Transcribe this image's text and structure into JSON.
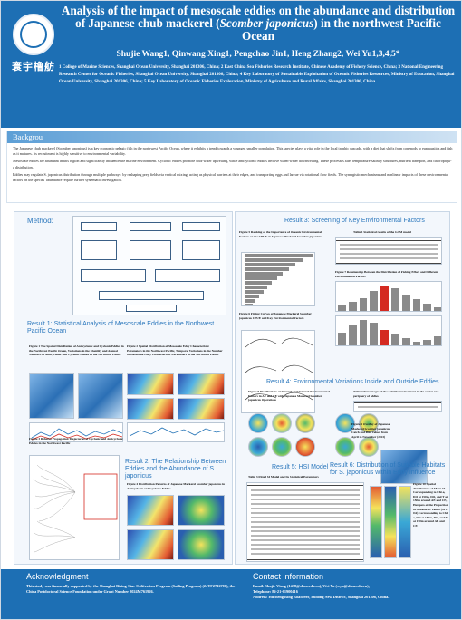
{
  "header": {
    "title_line1": "Analysis of the impact of mesoscale eddies on the abundance and distribution",
    "title_line2_pre": "of Japanese chub mackerel (",
    "title_line2_italic": "Scomber japonicus",
    "title_line2_post": ") in the northwest Pacific Ocean",
    "authors": "Shujie Wang1, Qinwang Xing1, Pengchao Jin1, Heng Zhang2, Wei Yu1,3,4,5*",
    "affiliations": "1 College of Marine Sciences, Shanghai Ocean University, Shanghai 201306, China; 2 East China Sea Fisheries Research Institute, Chinese Academy of Fishery Science, China; 3 National Engineering Research Center for Oceanic Fisheries, Shanghai Ocean University, Shanghai 201306, China; 4 Key Laboratory of Sustainable Exploitation of Oceanic Fisheries Resources, Ministry of Education, Shanghai Ocean University, Shanghai 201306, China; 5 Key Laboratory of Oceanic Fisheries Exploration, Ministry of Agriculture and Rural Affairs, Shanghai 201306, China",
    "logo_motto": "寰宇橹舫"
  },
  "background": {
    "heading": "Backgrou",
    "p1": "The Japanese chub mackerel (Scomber japonicus) is a key economic pelagic fish in the northwest Pacific Ocean, where it exhibits a trend towards a younger, smaller population. This species plays a vital role in the local trophic cascade, with a diet that shifts from copepods to euphausiids and fish as it matures. Its recruitment is highly sensitive to environmental variability.",
    "p2": "Mesoscale eddies are abundant in this region and significantly influence the marine environment. Cyclonic eddies promote cold-water upwelling, while anticyclonic eddies involve warm-water downwelling. These processes alter temperature-salinity structures, nutrient transport, and chlorophyll-a distribution.",
    "p3": "Eddies may regulate S. japonicus distribution through multiple pathways: by reshaping prey fields via vertical mixing, acting as physical barriers at their edges, and transporting eggs and larvae via rotational flow fields. The synergistic mechanisms and nonlinear impacts of these environmental factors on the species' abundance require further systematic investigation."
  },
  "method": {
    "heading": "Method:"
  },
  "result1": {
    "heading": "Result 1: Statistical Analysis of Mesoscale Eddies in the Northwest Pacific Ocean",
    "fig1": "Figure 1 The Spatial Distribution of Anticyclonic and Cyclonic Eddies in the Northwest Pacific Ocean, Variations in the Monthly and Annual Numbers of Anticyclonic and Cyclonic Eddies in the Northwest Pacific",
    "fig2": "Figure 2 Spatial Distribution of Mesoscale Eddy Characteristic Parameters in the Northwest Pacific, Temporal Variations in the Number of Mesoscale Eddy Characteristic Parameters in the Northwest Pacific",
    "fig3": "Figure 3 Relative Propagation Trajectories of Cyclonic and Anticyclonic Eddies in the Northwest Pacific"
  },
  "result2": {
    "heading": "Result 2: The Relationship Between Eddies and the Abundance of S. japonicus",
    "fig4": "Figure 4 Distribution Patterns of Japanese Mackerel Scomber japonicus in Anticyclonic and Cyclonic Eddies"
  },
  "result3": {
    "heading": "Result 3: Screening of Key Environmental Factors",
    "fig5": "Figure 5 Ranking of the Importance of Oceanic Environmental Factors on the CPUE of Japanese Mackerel Scomber japonicus",
    "table1": "Table 1 Statistical results of the GAM model",
    "fig7": "Figure 7 Relationship Between the Distribution of Fishing Effort and Different Environmental Factors",
    "fig6": "Figure 6 Fitting Curves of Japanese Mackerel Scomber japonicus CPUE and Key Environmental Factors"
  },
  "result4": {
    "heading": "Result 4: Environmental Variations Inside and Outside Eddies",
    "fig8": "Figure 8 Distributions of Internal and Internal Environmental Factors in AE and CE with Japanese Mackerel Scomber japonicus Operations",
    "table2": "Table 2 Percentages of the suitable environment in the center and periphery of eddies"
  },
  "result5": {
    "heading": "Result 5:  HSI Model",
    "table3": "Table 3 Fitted SI Model and Its Statistical Parameters",
    "fig9": "Figure 9 Overlay of Japanese Mackerel Scomber japonicus Catch and HSI Values from April to November (2023)"
  },
  "result6": {
    "heading": "Result 6: Distribution of Suitable Habitats for S. japonicus within Eddy Influence",
    "fig10": "Figure 10 Spatial distributions of Mean SI Corresponding to Chl-a, DO at 150m, DO, and T at 150m around AE and CE, Hotspots of the Proportion of Suitable SI Values (SI ≥ 0.6) Corresponding to Chl-a, DO at 150m, DO, and T at 150m around AE and CE"
  },
  "footer": {
    "ack_heading": "Acknowledgment",
    "ack_text": "This study was financially supported by the Shanghai Rising-Star Cultivation Program (Sailing Program) (24YF2716700), the China Postdoctoral Science Foundation under Grant Number 2024M761926.",
    "contact_heading": "Contact information",
    "contact_email": "Email: Shujie Wang (1438@shou.edu.cn), Wei Yu (wyu@shou.edu.cn),",
    "contact_phone": "Telephone: 86-21-61900416",
    "contact_address": "Address: Hucheng Ring Road 999, Pudong New District, Shanghai 201306, China."
  },
  "colors": {
    "header_blue": "#1d6fb4",
    "section_title_blue": "#2c78bd",
    "highlight_red": "#d42a21"
  },
  "chart_data": [
    {
      "type": "bar",
      "title": "Figure 5",
      "orientation": "horizontal",
      "values": [
        1.0,
        0.86,
        0.74,
        0.64,
        0.55,
        0.47,
        0.4,
        0.33,
        0.27,
        0.21,
        0.16,
        0.12
      ]
    },
    {
      "type": "bar",
      "title": "Figure 7",
      "values": [
        0.2,
        0.35,
        0.5,
        0.8,
        1.0,
        0.9,
        0.6,
        0.45,
        0.3,
        0.15
      ]
    }
  ]
}
